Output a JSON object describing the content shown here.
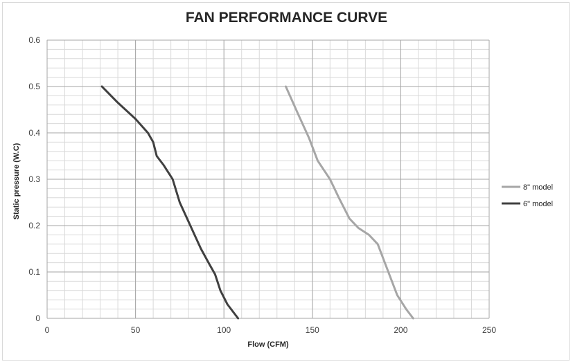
{
  "chart_data": {
    "type": "line",
    "title": "FAN PERFORMANCE CURVE",
    "xlabel": "Flow (CFM)",
    "ylabel": "Static pressure (W.C)",
    "xlim": [
      0,
      250
    ],
    "ylim": [
      0,
      0.6
    ],
    "x_ticks": [
      "0",
      "50",
      "100",
      "150",
      "200",
      "250"
    ],
    "y_ticks": [
      "0",
      "0.1",
      "0.2",
      "0.3",
      "0.4",
      "0.5",
      "0.6"
    ],
    "grid": true,
    "legend_position": "right",
    "series": [
      {
        "name": "8\" model",
        "color": "#a6a6a6",
        "points": [
          [
            135,
            0.5
          ],
          [
            142,
            0.44
          ],
          [
            148,
            0.39
          ],
          [
            153,
            0.34
          ],
          [
            160,
            0.3
          ],
          [
            165,
            0.26
          ],
          [
            171,
            0.215
          ],
          [
            176,
            0.195
          ],
          [
            182,
            0.18
          ],
          [
            187,
            0.16
          ],
          [
            191,
            0.12
          ],
          [
            195,
            0.08
          ],
          [
            198,
            0.05
          ],
          [
            203,
            0.02
          ],
          [
            207,
            0.0
          ]
        ]
      },
      {
        "name": "6\" model",
        "color": "#404040",
        "points": [
          [
            31,
            0.5
          ],
          [
            40,
            0.465
          ],
          [
            50,
            0.43
          ],
          [
            57,
            0.4
          ],
          [
            60,
            0.38
          ],
          [
            62,
            0.35
          ],
          [
            66,
            0.33
          ],
          [
            71,
            0.3
          ],
          [
            75,
            0.25
          ],
          [
            81,
            0.2
          ],
          [
            87,
            0.15
          ],
          [
            92,
            0.115
          ],
          [
            95,
            0.095
          ],
          [
            98,
            0.06
          ],
          [
            102,
            0.03
          ],
          [
            108,
            0.0
          ]
        ]
      }
    ]
  }
}
